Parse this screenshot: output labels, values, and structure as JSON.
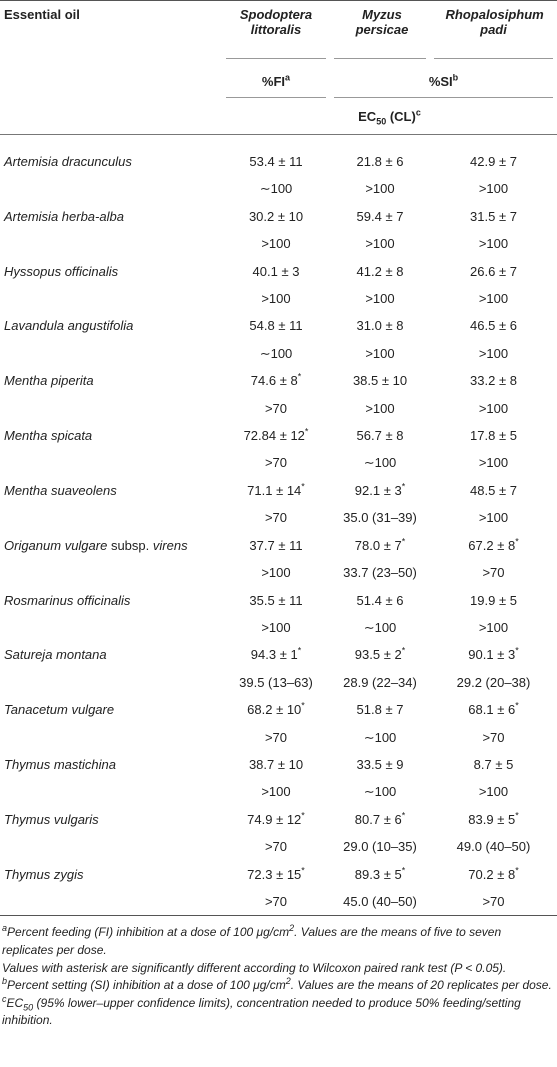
{
  "table": {
    "header": {
      "essential_oil": "Essential oil",
      "species": [
        "Spodoptera littoralis",
        "Myzus persicae",
        "Rhopalosiphum padi"
      ],
      "fi": {
        "text": "%FI",
        "sup": "a"
      },
      "si": {
        "text": "%SI",
        "sup": "b"
      },
      "ec50": {
        "text": "EC",
        "sub": "50",
        "rest": "(CL)",
        "sup": "c"
      }
    },
    "rows": [
      {
        "name": "Artemisia dracunculus",
        "activity": [
          "53.4 ± 11",
          "21.8 ± 6",
          "42.9 ± 7"
        ],
        "ec50": [
          "∼100",
          ">100",
          ">100"
        ]
      },
      {
        "name": "Artemisia herba-alba",
        "activity": [
          "30.2 ± 10",
          "59.4 ± 7",
          "31.5 ± 7"
        ],
        "ec50": [
          ">100",
          ">100",
          ">100"
        ]
      },
      {
        "name": "Hyssopus officinalis",
        "activity": [
          "40.1 ± 3",
          "41.2 ± 8",
          "26.6 ± 7"
        ],
        "ec50": [
          ">100",
          ">100",
          ">100"
        ]
      },
      {
        "name": "Lavandula angustifolia",
        "activity": [
          "54.8 ± 11",
          "31.0 ± 8",
          "46.5 ± 6"
        ],
        "ec50": [
          "∼100",
          ">100",
          ">100"
        ]
      },
      {
        "name": "Mentha piperita",
        "activity": [
          {
            "text": "74.6 ± 8",
            "sup": "*"
          },
          "38.5 ± 10",
          "33.2 ± 8"
        ],
        "ec50": [
          ">70",
          ">100",
          ">100"
        ]
      },
      {
        "name": "Mentha spicata",
        "activity": [
          {
            "text": "72.84 ± 12",
            "sup": "*"
          },
          "56.7 ± 8",
          "17.8 ± 5"
        ],
        "ec50": [
          ">70",
          "∼100",
          ">100"
        ]
      },
      {
        "name": "Mentha suaveolens",
        "activity": [
          {
            "text": "71.1 ± 14",
            "sup": "*"
          },
          {
            "text": "92.1 ± 3",
            "sup": "*"
          },
          "48.5 ± 7"
        ],
        "ec50": [
          ">70",
          "35.0 (31–39)",
          ">100"
        ]
      },
      {
        "name": {
          "italic": "Origanum vulgare",
          "roman": "subsp.",
          "italic2": "virens"
        },
        "activity": [
          "37.7 ± 11",
          {
            "text": "78.0 ± 7",
            "sup": "*"
          },
          {
            "text": "67.2 ± 8",
            "sup": "*"
          }
        ],
        "ec50": [
          ">100",
          "33.7 (23–50)",
          ">70"
        ]
      },
      {
        "name": "Rosmarinus officinalis",
        "activity": [
          "35.5 ± 11",
          "51.4 ± 6",
          "19.9 ± 5"
        ],
        "ec50": [
          ">100",
          "∼100",
          ">100"
        ]
      },
      {
        "name": "Satureja montana",
        "activity": [
          {
            "text": "94.3 ± 1",
            "sup": "*"
          },
          {
            "text": "93.5 ± 2",
            "sup": "*"
          },
          {
            "text": "90.1 ± 3",
            "sup": "*"
          }
        ],
        "ec50": [
          "39.5 (13–63)",
          "28.9 (22–34)",
          "29.2 (20–38)"
        ]
      },
      {
        "name": "Tanacetum vulgare",
        "activity": [
          {
            "text": "68.2 ± 10",
            "sup": "*"
          },
          "51.8 ± 7",
          {
            "text": "68.1 ± 6",
            "sup": "*"
          }
        ],
        "ec50": [
          ">70",
          "∼100",
          ">70"
        ]
      },
      {
        "name": "Thymus mastichina",
        "activity": [
          "38.7 ± 10",
          "33.5 ± 9",
          "8.7 ± 5"
        ],
        "ec50": [
          ">100",
          "∼100",
          ">100"
        ]
      },
      {
        "name": "Thymus vulgaris",
        "activity": [
          {
            "text": "74.9 ± 12",
            "sup": "*"
          },
          {
            "text": "80.7 ± 6",
            "sup": "*"
          },
          {
            "text": "83.9 ± 5",
            "sup": "*"
          }
        ],
        "ec50": [
          ">70",
          "29.0 (10–35)",
          "49.0 (40–50)"
        ]
      },
      {
        "name": "Thymus zygis",
        "activity": [
          {
            "text": "72.3 ± 15",
            "sup": "*"
          },
          {
            "text": "89.3 ± 5",
            "sup": "*"
          },
          {
            "text": "70.2 ± 8",
            "sup": "*"
          }
        ],
        "ec50": [
          ">70",
          "45.0 (40–50)",
          ">70"
        ]
      }
    ],
    "footnotes": [
      [
        {
          "sup": "a"
        },
        "Percent feeding (FI) inhibition at a dose of 100 μg/cm",
        {
          "sup": "2"
        },
        ". Values are the means of five to seven replicates per dose."
      ],
      [
        "Values with asterisk are significantly different according to Wilcoxon paired rank test (P < 0.05)."
      ],
      [
        {
          "sup": "b"
        },
        "Percent setting (SI) inhibition at a dose of 100 μg/cm",
        {
          "sup": "2"
        },
        ". Values are the means of 20 replicates per dose."
      ],
      [
        {
          "sup": "c"
        },
        "EC",
        {
          "sub": "50"
        },
        " (95% lower–upper confidence limits), concentration needed to produce 50% feeding/setting inhibition."
      ]
    ]
  }
}
